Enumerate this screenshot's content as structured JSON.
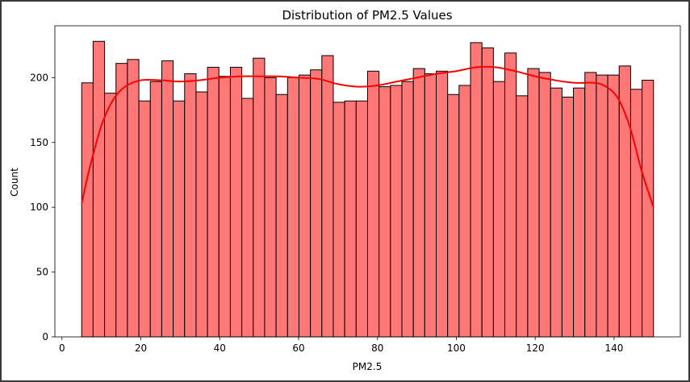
{
  "chart_data": {
    "type": "bar",
    "title": "Distribution of PM2.5 Values",
    "xlabel": "PM2.5",
    "ylabel": "Count",
    "xlim": [
      -1.8,
      156.8
    ],
    "ylim": [
      0,
      240
    ],
    "xticks": [
      0,
      20,
      40,
      60,
      80,
      100,
      120,
      140
    ],
    "yticks": [
      0,
      50,
      100,
      150,
      200
    ],
    "grid": false,
    "legend": "none",
    "bin_edges": [
      5.0,
      7.9,
      10.8,
      13.7,
      16.6,
      19.5,
      22.4,
      25.3,
      28.2,
      31.1,
      34.0,
      36.9,
      39.8,
      42.7,
      45.6,
      48.5,
      51.4,
      54.3,
      57.2,
      60.1,
      63.0,
      65.9,
      68.8,
      71.7,
      74.6,
      77.5,
      80.4,
      83.3,
      86.2,
      89.1,
      92.0,
      94.9,
      97.8,
      100.7,
      103.6,
      106.5,
      109.4,
      112.3,
      115.2,
      118.1,
      121.0,
      123.9,
      126.8,
      129.7,
      132.6,
      135.5,
      138.4,
      141.3,
      144.2,
      147.1,
      150.0
    ],
    "counts": [
      196,
      228,
      188,
      211,
      214,
      182,
      197,
      213,
      182,
      203,
      189,
      208,
      201,
      208,
      184,
      215,
      200,
      187,
      200,
      202,
      206,
      217,
      181,
      182,
      182,
      205,
      193,
      194,
      197,
      207,
      203,
      205,
      187,
      194,
      227,
      223,
      197,
      219,
      186,
      207,
      204,
      192,
      185,
      192,
      204,
      202,
      202,
      209,
      191,
      198
    ],
    "kde": {
      "x": [
        5,
        7,
        10,
        13,
        16,
        20,
        25,
        30,
        35,
        40,
        45,
        50,
        55,
        60,
        65,
        70,
        75,
        80,
        85,
        90,
        95,
        100,
        105,
        110,
        115,
        120,
        125,
        130,
        135,
        138,
        141,
        144,
        147,
        150
      ],
      "y": [
        103,
        130,
        163,
        183,
        193,
        198,
        198,
        197,
        198,
        200,
        201,
        201,
        201,
        200,
        199,
        195,
        193,
        194,
        197,
        200,
        203,
        205,
        208,
        208,
        205,
        201,
        198,
        196,
        196,
        193,
        184,
        162,
        128,
        100
      ]
    },
    "colors": {
      "bar_fill": "#ff7777",
      "bar_edge": "#000000",
      "kde_line": "#ff0000"
    }
  }
}
